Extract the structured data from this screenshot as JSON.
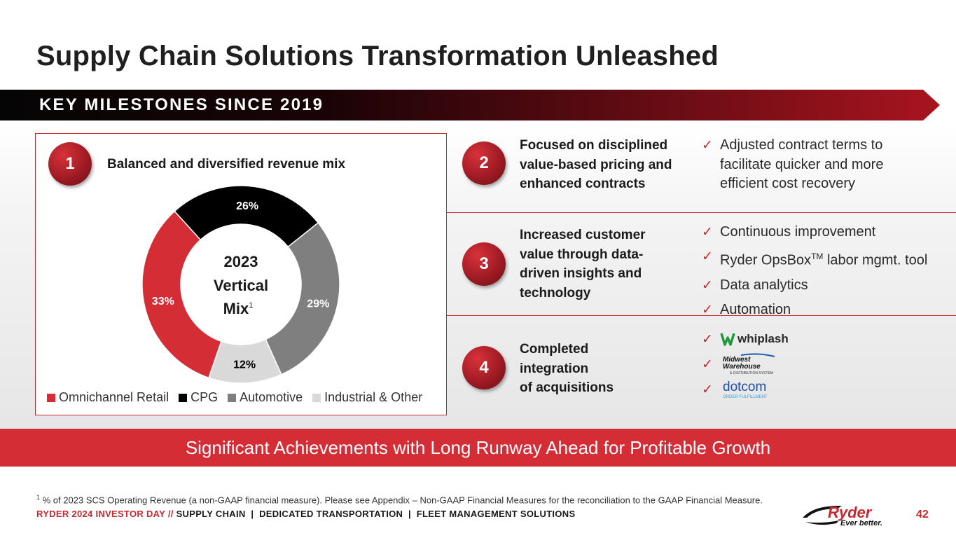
{
  "title": "Supply Chain Solutions Transformation Unleashed",
  "banner": "KEY MILESTONES SINCE 2019",
  "milestone1": {
    "number": "1",
    "heading": "Balanced and diversified revenue mix",
    "center_line1": "2023",
    "center_line2": "Vertical",
    "center_line3": "Mix",
    "center_sup": "1"
  },
  "chart_data": {
    "type": "pie",
    "title": "2023 Vertical Mix",
    "categories": [
      "Omnichannel Retail",
      "CPG",
      "Automotive",
      "Industrial & Other"
    ],
    "values": [
      33,
      26,
      29,
      12
    ],
    "labels": [
      "33%",
      "26%",
      "29%",
      "12%"
    ],
    "colors": [
      "#d42d36",
      "#000000",
      "#7f7f7f",
      "#d9d9d9"
    ],
    "label_colors": [
      "#ffffff",
      "#ffffff",
      "#ffffff",
      "#000000"
    ],
    "hole": "donut",
    "legend_position": "bottom"
  },
  "milestone2": {
    "number": "2",
    "lines": [
      "Focused on disciplined",
      "value-based pricing and",
      "enhanced contracts"
    ],
    "checks": [
      [
        "Adjusted contract terms to",
        "facilitate quicker and more",
        "efficient cost recovery"
      ]
    ]
  },
  "milestone3": {
    "number": "3",
    "lines": [
      "Increased customer",
      "value through data-",
      "driven insights and",
      "technology"
    ],
    "check1": "Continuous improvement",
    "check2_pre": "Ryder OpsBox",
    "check2_sup": "TM",
    "check2_post": " labor mgmt. tool",
    "check3": "Data analytics",
    "check4": "Automation"
  },
  "milestone4": {
    "number": "4",
    "lines": [
      "Completed",
      "integration",
      "of acquisitions"
    ],
    "logos": {
      "whiplash": "whiplash",
      "midwest_1": "Midwest",
      "midwest_2": "Warehouse",
      "midwest_3": "& DISTRIBUTION SYSTEM",
      "dotcom_1": "dotcom",
      "dotcom_2": "ORDER FULFILLMENT"
    }
  },
  "tick_glyph": "✓",
  "footer_band": "Significant Achievements with Long Runway Ahead for Profitable Growth",
  "footnote_sup": "1",
  "footnote": " % of 2023 SCS Operating Revenue (a non-GAAP financial measure). Please see Appendix – Non-GAAP Financial Measures for the reconciliation to the GAAP Financial Measure.",
  "footer_nav": {
    "event": "RYDER 2024 INVESTOR DAY",
    "sep": " // ",
    "sections": "SUPPLY CHAIN  |  DEDICATED TRANSPORTATION  |  FLEET MANAGEMENT SOLUTIONS"
  },
  "logo": {
    "name": "Ryder",
    "tagline": "Ever better."
  },
  "page_number": "42",
  "colors": {
    "brand_red": "#c9272d",
    "band_red": "#d42d36"
  }
}
